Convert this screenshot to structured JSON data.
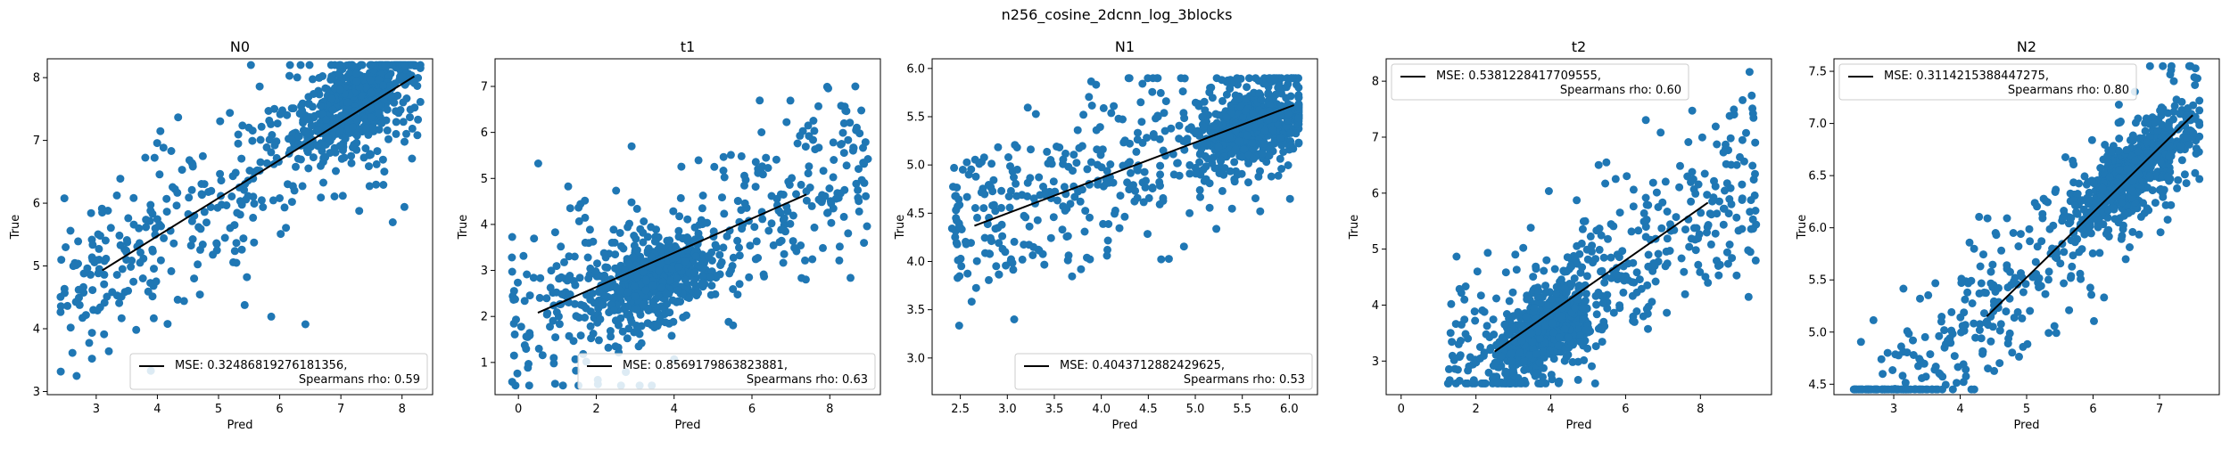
{
  "suptitle": "n256_cosine_2dcnn_log_3blocks",
  "colors": {
    "points": "#1f77b4",
    "fit_line": "#000000",
    "axes": "#000000",
    "legend_border": "#cccccc"
  },
  "chart_data": [
    {
      "type": "scatter",
      "title": "N0",
      "xlabel": "Pred",
      "ylabel": "True",
      "xlim": [
        2.2,
        8.5
      ],
      "ylim": [
        2.95,
        8.3
      ],
      "xticks": [
        "3",
        "4",
        "5",
        "6",
        "7",
        "8"
      ],
      "yticks": [
        "3",
        "4",
        "5",
        "6",
        "7",
        "8"
      ],
      "fit_line": {
        "x": [
          3.1,
          8.2
        ],
        "y": [
          4.93,
          8.02
        ]
      },
      "cloud": {
        "x_mode": 7.2,
        "y_mode": 7.6,
        "x_range": [
          2.4,
          8.3
        ],
        "y_range": [
          3.1,
          8.2
        ]
      },
      "legend_mse": "MSE: 0.32486819276181356,",
      "legend_rho": "Spearmans rho: 0.59",
      "legend_loc": "lower-right"
    },
    {
      "type": "scatter",
      "title": "t1",
      "xlabel": "Pred",
      "ylabel": "True",
      "xlim": [
        -0.6,
        9.3
      ],
      "ylim": [
        0.3,
        7.6
      ],
      "xticks": [
        "0",
        "2",
        "4",
        "6",
        "8"
      ],
      "yticks": [
        "1",
        "2",
        "3",
        "4",
        "5",
        "6",
        "7"
      ],
      "fit_line": {
        "x": [
          0.5,
          7.4
        ],
        "y": [
          2.08,
          4.65
        ]
      },
      "cloud": {
        "x_mode": 3.5,
        "y_mode": 2.8,
        "x_range": [
          -0.2,
          9.0
        ],
        "y_range": [
          0.5,
          7.3
        ]
      },
      "legend_mse": "MSE: 0.8569179863823881,",
      "legend_rho": "Spearmans rho: 0.63",
      "legend_loc": "lower-right"
    },
    {
      "type": "scatter",
      "title": "N1",
      "xlabel": "Pred",
      "ylabel": "True",
      "xlim": [
        2.2,
        6.3
      ],
      "ylim": [
        2.62,
        6.1
      ],
      "xticks": [
        "2.5",
        "3.0",
        "3.5",
        "4.0",
        "4.5",
        "5.0",
        "5.5",
        "6.0"
      ],
      "yticks": [
        "3.0",
        "3.5",
        "4.0",
        "4.5",
        "5.0",
        "5.5",
        "6.0"
      ],
      "fit_line": {
        "x": [
          2.65,
          6.05
        ],
        "y": [
          4.37,
          5.62
        ]
      },
      "cloud": {
        "x_mode": 5.6,
        "y_mode": 5.4,
        "x_range": [
          2.4,
          6.1
        ],
        "y_range": [
          2.7,
          5.9
        ]
      },
      "legend_mse": "MSE: 0.4043712882429625,",
      "legend_rho": "Spearmans rho: 0.53",
      "legend_loc": "lower-right"
    },
    {
      "type": "scatter",
      "title": "t2",
      "xlabel": "Pred",
      "ylabel": "True",
      "xlim": [
        -0.4,
        9.9
      ],
      "ylim": [
        2.4,
        8.4
      ],
      "xticks": [
        "0",
        "2",
        "4",
        "6",
        "8"
      ],
      "yticks": [
        "3",
        "4",
        "5",
        "6",
        "7",
        "8"
      ],
      "fit_line": {
        "x": [
          2.5,
          8.2
        ],
        "y": [
          3.17,
          5.83
        ]
      },
      "cloud": {
        "x_mode": 3.8,
        "y_mode": 3.5,
        "x_range": [
          1.2,
          9.5
        ],
        "y_range": [
          2.6,
          8.2
        ]
      },
      "legend_mse": "MSE: 0.5381228417709555,",
      "legend_rho": "Spearmans rho: 0.60",
      "legend_loc": "upper-left"
    },
    {
      "type": "scatter",
      "title": "N2",
      "xlabel": "Pred",
      "ylabel": "True",
      "xlim": [
        2.1,
        7.9
      ],
      "ylim": [
        4.4,
        7.62
      ],
      "xticks": [
        "3",
        "4",
        "5",
        "6",
        "7"
      ],
      "yticks": [
        "4.5",
        "5.0",
        "5.5",
        "6.0",
        "6.5",
        "7.0",
        "7.5"
      ],
      "fit_line": {
        "x": [
          4.4,
          7.5
        ],
        "y": [
          5.15,
          7.08
        ]
      },
      "cloud": {
        "x_mode": 6.6,
        "y_mode": 6.5,
        "x_range": [
          2.4,
          7.6
        ],
        "y_range": [
          4.45,
          7.55
        ]
      },
      "legend_mse": "MSE: 0.3114215388447275,",
      "legend_rho": "Spearmans rho: 0.80",
      "legend_loc": "upper-left"
    }
  ]
}
